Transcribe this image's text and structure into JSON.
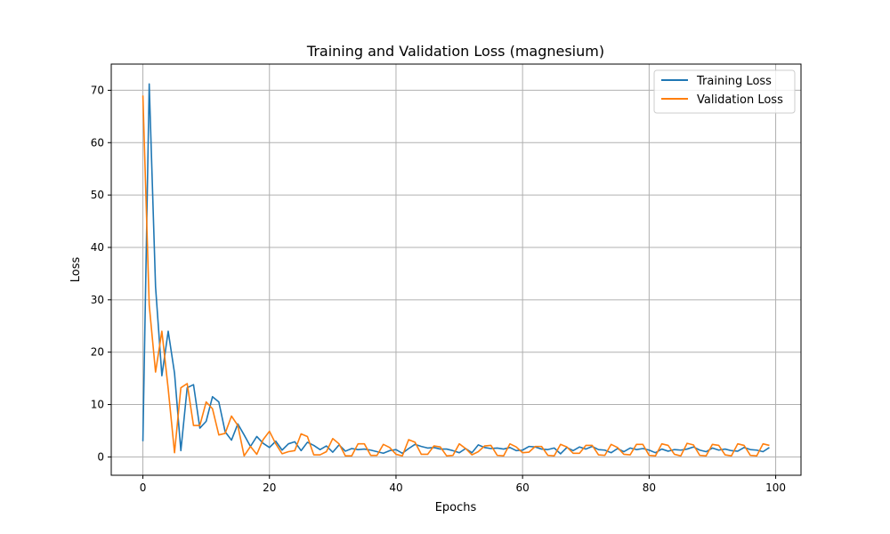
{
  "chart_data": {
    "type": "line",
    "title": "Training and Validation Loss (magnesium)",
    "xlabel": "Epochs",
    "ylabel": "Loss",
    "xlim": [
      -5,
      104
    ],
    "ylim": [
      -3.5,
      75
    ],
    "xticks": [
      0,
      20,
      40,
      60,
      80,
      100
    ],
    "yticks": [
      0,
      10,
      20,
      30,
      40,
      50,
      60,
      70
    ],
    "grid": true,
    "legend_position": "top-right",
    "x": [
      0,
      1,
      2,
      3,
      4,
      5,
      6,
      7,
      8,
      9,
      10,
      11,
      12,
      13,
      14,
      15,
      16,
      17,
      18,
      19,
      20,
      21,
      22,
      23,
      24,
      25,
      26,
      27,
      28,
      29,
      30,
      31,
      32,
      33,
      34,
      35,
      36,
      37,
      38,
      39,
      40,
      41,
      42,
      43,
      44,
      45,
      46,
      47,
      48,
      49,
      50,
      51,
      52,
      53,
      54,
      55,
      56,
      57,
      58,
      59,
      60,
      61,
      62,
      63,
      64,
      65,
      66,
      67,
      68,
      69,
      70,
      71,
      72,
      73,
      74,
      75,
      76,
      77,
      78,
      79,
      80,
      81,
      82,
      83,
      84,
      85,
      86,
      87,
      88,
      89,
      90,
      91,
      92,
      93,
      94,
      95,
      96,
      97,
      98,
      99
    ],
    "series": [
      {
        "name": "Training Loss",
        "color": "#1f77b4",
        "values": [
          3.0,
          71.2,
          32.5,
          15.5,
          24.0,
          16.0,
          1.2,
          13.2,
          13.8,
          5.5,
          6.8,
          11.5,
          10.5,
          4.8,
          3.2,
          6.3,
          4.2,
          2.0,
          3.9,
          2.6,
          1.8,
          3.0,
          1.3,
          2.5,
          2.9,
          1.2,
          2.8,
          2.2,
          1.4,
          2.1,
          0.9,
          2.3,
          1.1,
          1.6,
          1.4,
          1.5,
          1.3,
          1.0,
          0.7,
          1.2,
          1.4,
          0.7,
          1.6,
          2.4,
          2.0,
          1.7,
          1.8,
          1.5,
          1.5,
          1.2,
          0.8,
          1.6,
          0.8,
          2.3,
          1.8,
          1.6,
          1.7,
          1.5,
          1.8,
          1.2,
          1.3,
          2.0,
          1.9,
          1.5,
          1.4,
          1.7,
          0.6,
          1.8,
          1.2,
          1.9,
          1.5,
          2.0,
          1.4,
          1.3,
          0.8,
          1.6,
          1.0,
          1.7,
          1.4,
          1.6,
          1.3,
          0.8,
          1.5,
          1.1,
          1.4,
          1.3,
          1.5,
          1.9,
          1.3,
          1.0,
          1.7,
          1.3,
          1.5,
          1.2,
          1.1,
          1.8,
          1.4,
          1.3,
          1.0,
          1.8
        ]
      },
      {
        "name": "Validation Loss",
        "color": "#ff7f0e",
        "values": [
          69.0,
          29.0,
          16.2,
          24.0,
          13.0,
          0.8,
          13.2,
          14.0,
          6.0,
          6.0,
          10.5,
          9.2,
          4.2,
          4.5,
          7.8,
          6.0,
          0.2,
          2.0,
          0.5,
          3.3,
          4.9,
          2.5,
          0.6,
          1.0,
          1.2,
          4.4,
          3.9,
          0.4,
          0.4,
          1.0,
          3.5,
          2.5,
          0.2,
          0.2,
          2.5,
          2.5,
          0.3,
          0.3,
          2.4,
          1.8,
          0.5,
          0.2,
          3.3,
          2.8,
          0.5,
          0.5,
          2.1,
          1.9,
          0.2,
          0.3,
          2.5,
          1.6,
          0.4,
          1.0,
          2.1,
          2.2,
          0.3,
          0.2,
          2.5,
          1.9,
          0.8,
          0.9,
          2.0,
          2.0,
          0.3,
          0.2,
          2.4,
          1.9,
          0.7,
          0.7,
          2.2,
          2.2,
          0.4,
          0.3,
          2.4,
          1.8,
          0.5,
          0.4,
          2.4,
          2.4,
          0.3,
          0.2,
          2.5,
          2.2,
          0.5,
          0.2,
          2.6,
          2.3,
          0.3,
          0.2,
          2.4,
          2.2,
          0.4,
          0.2,
          2.5,
          2.2,
          0.3,
          0.2,
          2.5,
          2.2
        ]
      }
    ]
  }
}
